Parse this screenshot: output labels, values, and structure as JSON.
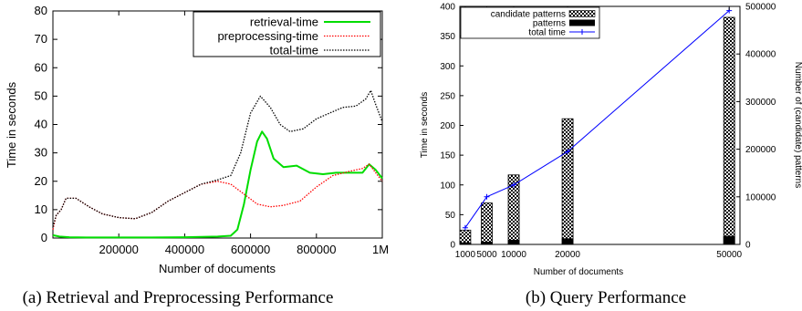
{
  "chart_data": [
    {
      "type": "line",
      "xlabel": "Number of documents",
      "ylabel": "Time in seconds",
      "xlim": [
        0,
        1000000
      ],
      "ylim": [
        0,
        80
      ],
      "x_ticks": [
        {
          "v": 200000,
          "label": "200000"
        },
        {
          "v": 400000,
          "label": "400000"
        },
        {
          "v": 600000,
          "label": "600000"
        },
        {
          "v": 800000,
          "label": "800000"
        },
        {
          "v": 1000000,
          "label": "1M"
        }
      ],
      "y_ticks": [
        0,
        10,
        20,
        30,
        40,
        50,
        60,
        70,
        80
      ],
      "grid": false,
      "legend_position": "top-right",
      "series": [
        {
          "name": "retrieval-time",
          "color": "#00dd00",
          "style": "solid",
          "points": [
            [
              0,
              1
            ],
            [
              20000,
              0.5
            ],
            [
              50000,
              0.3
            ],
            [
              100000,
              0.2
            ],
            [
              200000,
              0.2
            ],
            [
              300000,
              0.2
            ],
            [
              400000,
              0.3
            ],
            [
              500000,
              0.5
            ],
            [
              540000,
              0.8
            ],
            [
              560000,
              3
            ],
            [
              580000,
              12
            ],
            [
              600000,
              24
            ],
            [
              620000,
              34
            ],
            [
              635000,
              37.5
            ],
            [
              650000,
              35
            ],
            [
              670000,
              28
            ],
            [
              700000,
              25
            ],
            [
              740000,
              25.5
            ],
            [
              780000,
              23
            ],
            [
              820000,
              22.5
            ],
            [
              860000,
              23
            ],
            [
              900000,
              23
            ],
            [
              940000,
              23
            ],
            [
              960000,
              26
            ],
            [
              980000,
              24
            ],
            [
              1000000,
              21
            ]
          ]
        },
        {
          "name": "preprocessing-time",
          "color": "#ff0000",
          "style": "dotted",
          "points": [
            [
              0,
              3
            ],
            [
              10000,
              8
            ],
            [
              25000,
              10
            ],
            [
              40000,
              14
            ],
            [
              70000,
              14
            ],
            [
              110000,
              11
            ],
            [
              150000,
              8.5
            ],
            [
              200000,
              7.2
            ],
            [
              250000,
              6.8
            ],
            [
              300000,
              9
            ],
            [
              350000,
              13
            ],
            [
              400000,
              16
            ],
            [
              450000,
              19
            ],
            [
              500000,
              20
            ],
            [
              540000,
              19
            ],
            [
              580000,
              15.5
            ],
            [
              620000,
              12
            ],
            [
              660000,
              11
            ],
            [
              700000,
              11.5
            ],
            [
              750000,
              13
            ],
            [
              800000,
              18
            ],
            [
              850000,
              22
            ],
            [
              900000,
              23.5
            ],
            [
              940000,
              24.5
            ],
            [
              960000,
              26
            ],
            [
              980000,
              23
            ],
            [
              1000000,
              20
            ]
          ]
        },
        {
          "name": "total-time",
          "color": "#000000",
          "style": "dotted",
          "points": [
            [
              0,
              4
            ],
            [
              10000,
              8
            ],
            [
              25000,
              10
            ],
            [
              40000,
              14
            ],
            [
              70000,
              14
            ],
            [
              110000,
              11
            ],
            [
              150000,
              8.5
            ],
            [
              200000,
              7.2
            ],
            [
              250000,
              6.8
            ],
            [
              300000,
              9
            ],
            [
              350000,
              13
            ],
            [
              400000,
              16
            ],
            [
              450000,
              19
            ],
            [
              500000,
              20.5
            ],
            [
              540000,
              22
            ],
            [
              570000,
              30
            ],
            [
              600000,
              44
            ],
            [
              630000,
              50
            ],
            [
              660000,
              46
            ],
            [
              690000,
              40
            ],
            [
              720000,
              37.5
            ],
            [
              760000,
              38.5
            ],
            [
              800000,
              42
            ],
            [
              840000,
              44
            ],
            [
              880000,
              46
            ],
            [
              920000,
              46.5
            ],
            [
              950000,
              49
            ],
            [
              965000,
              52
            ],
            [
              980000,
              47
            ],
            [
              1000000,
              41
            ]
          ]
        }
      ]
    },
    {
      "type": "bar",
      "xlabel": "Number of documents",
      "ylabel": "Time in seconds",
      "y2label": "Number of (candidate) patterns",
      "xlim": [
        0,
        52000
      ],
      "ylim": [
        0,
        400
      ],
      "y2lim": [
        0,
        500000
      ],
      "categories": [
        "1000",
        "5000",
        "10000",
        "20000",
        "50000"
      ],
      "x_positions": [
        1000,
        5000,
        10000,
        20000,
        50000
      ],
      "y_ticks": [
        0,
        50,
        100,
        150,
        200,
        250,
        300,
        350,
        400
      ],
      "y2_ticks": [
        0,
        100000,
        200000,
        300000,
        400000,
        500000
      ],
      "grid": false,
      "legend_position": "top-left",
      "series": [
        {
          "name": "candidate patterns",
          "color": "#000000",
          "fill": "checker",
          "axis": "y2",
          "values": [
            30000,
            87000,
            146000,
            264000,
            477000
          ]
        },
        {
          "name": "patterns",
          "color": "#000000",
          "fill": "solid",
          "axis": "y2",
          "values": [
            3500,
            5000,
            9000,
            12000,
            17000
          ]
        },
        {
          "name": "total time",
          "color": "#0000ff",
          "style": "solid",
          "marker": "plus",
          "axis": "y",
          "values": [
            28,
            80,
            100,
            156,
            393
          ]
        }
      ]
    }
  ],
  "captions": {
    "left": "(a) Retrieval and Preprocessing Performance",
    "right": "(b) Query Performance"
  }
}
